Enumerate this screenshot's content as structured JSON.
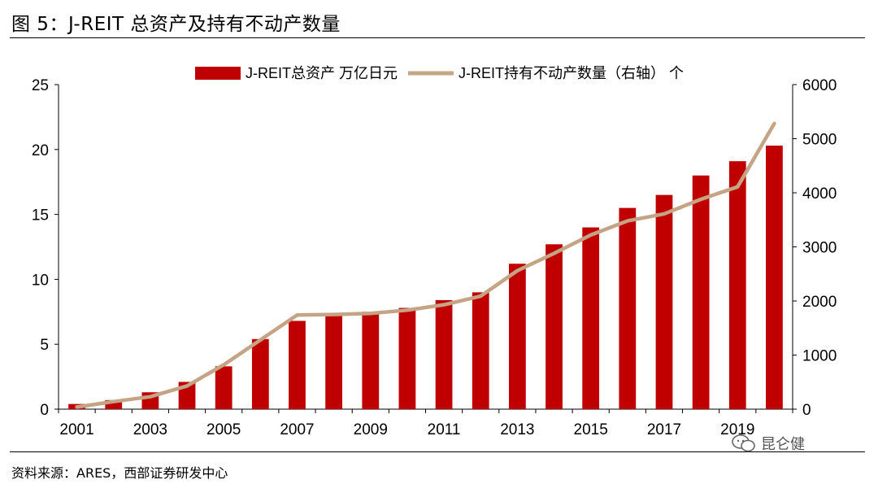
{
  "title": "图 5：J-REIT 总资产及持有不动产数量",
  "source": "资料来源：ARES，西部证券研发中心",
  "watermark": "昆仑健",
  "colors": {
    "bar": "#c00000",
    "line": "#c4a484"
  },
  "chart_data": {
    "type": "bar",
    "x": [
      2001,
      2002,
      2003,
      2004,
      2005,
      2006,
      2007,
      2008,
      2009,
      2010,
      2011,
      2012,
      2013,
      2014,
      2015,
      2016,
      2017,
      2018,
      2019,
      2020
    ],
    "x_tick_labels": [
      "2001",
      "2003",
      "2005",
      "2007",
      "2009",
      "2011",
      "2013",
      "2015",
      "2017",
      "2019"
    ],
    "series": [
      {
        "name": "J-REIT总资产 万亿日元",
        "type": "bar",
        "axis": "left",
        "values": [
          0.4,
          0.7,
          1.3,
          2.1,
          3.3,
          5.4,
          6.8,
          7.4,
          7.5,
          7.8,
          8.4,
          9.0,
          11.2,
          12.7,
          14.0,
          15.5,
          16.5,
          18.0,
          19.1,
          20.3
        ]
      },
      {
        "name": "J-REIT持有不动产数量（右轴） 个",
        "type": "line",
        "axis": "right",
        "values": [
          40,
          140,
          230,
          430,
          820,
          1280,
          1740,
          1750,
          1770,
          1830,
          1930,
          2090,
          2560,
          2880,
          3220,
          3480,
          3610,
          3880,
          4110,
          5280
        ]
      }
    ],
    "ylim": [
      0,
      25
    ],
    "yticks": [
      0,
      5,
      10,
      15,
      20,
      25
    ],
    "y2lim": [
      0,
      6000
    ],
    "y2ticks": [
      0,
      1000,
      2000,
      3000,
      4000,
      5000,
      6000
    ],
    "legend": "top-center",
    "grid": false
  }
}
